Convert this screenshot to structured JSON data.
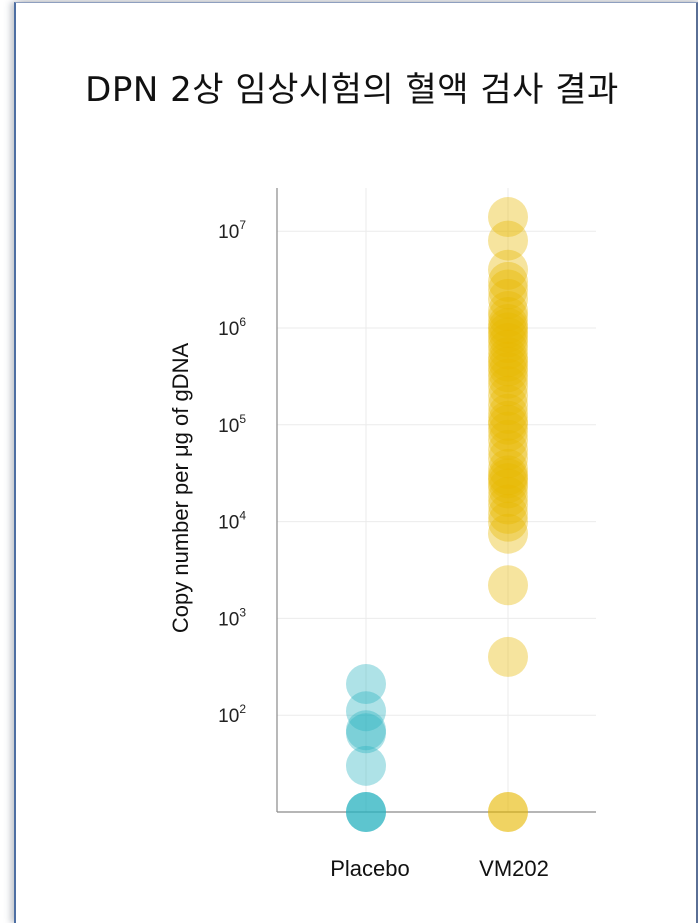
{
  "title": "DPN 2상 임상시험의 혈액 검사 결과",
  "chart_data": {
    "type": "scatter",
    "title": "DPN 2상 임상시험의 혈액 검사 결과",
    "xlabel": "",
    "ylabel": "Copy number per μg of gDNA",
    "yscale": "log",
    "categories": [
      "Placebo",
      "VM202"
    ],
    "y_ticks": [
      {
        "base": "10",
        "exp": "2",
        "value": 100
      },
      {
        "base": "10",
        "exp": "3",
        "value": 1000
      },
      {
        "base": "10",
        "exp": "4",
        "value": 10000
      },
      {
        "base": "10",
        "exp": "5",
        "value": 100000
      },
      {
        "base": "10",
        "exp": "6",
        "value": 1000000
      },
      {
        "base": "10",
        "exp": "7",
        "value": 10000000
      }
    ],
    "grid": true,
    "series": [
      {
        "category": "Placebo",
        "color": "#2bb3c0",
        "values": [
          10,
          10,
          10,
          30,
          65,
          70,
          110,
          210
        ]
      },
      {
        "category": "VM202",
        "color": "#e8b800",
        "values": [
          10,
          10,
          400,
          2200,
          7500,
          10000,
          12000,
          15000,
          18000,
          22000,
          25000,
          28000,
          30000,
          35000,
          45000,
          55000,
          70000,
          85000,
          100000,
          110000,
          130000,
          160000,
          200000,
          250000,
          300000,
          350000,
          400000,
          450000,
          500000,
          600000,
          700000,
          800000,
          900000,
          1000000,
          1100000,
          1300000,
          1500000,
          2000000,
          2500000,
          3000000,
          4000000,
          8000000,
          14000000
        ]
      }
    ]
  }
}
